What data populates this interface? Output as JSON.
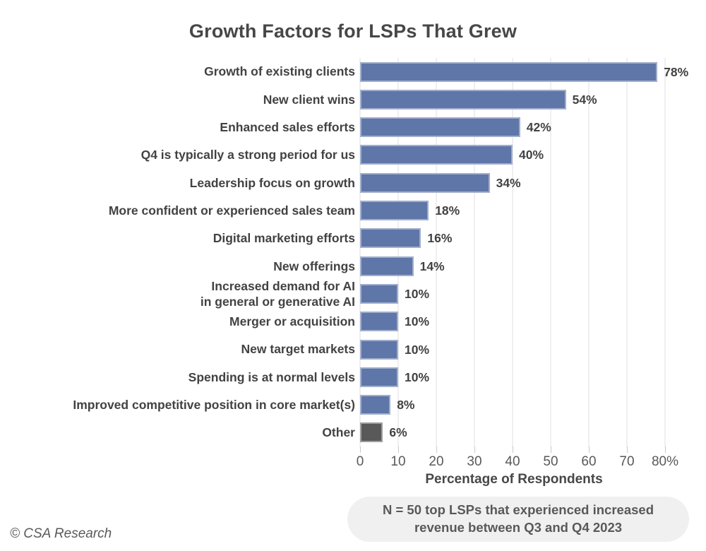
{
  "title": "Growth Factors for LSPs That Grew",
  "chart_data": {
    "type": "bar",
    "orientation": "horizontal",
    "title": "Growth Factors for LSPs That Grew",
    "categories": [
      "Growth of existing clients",
      "New client wins",
      "Enhanced sales efforts",
      "Q4 is typically a strong period for us",
      "Leadership focus on growth",
      "More confident or experienced sales team",
      "Digital marketing efforts",
      "New offerings",
      "Increased demand for AI\nin general or generative AI",
      "Merger or acquisition",
      "New target markets",
      "Spending is at normal levels",
      "Improved competitive position in core market(s)",
      "Other"
    ],
    "values": [
      78,
      54,
      42,
      40,
      34,
      18,
      16,
      14,
      10,
      10,
      10,
      10,
      8,
      6
    ],
    "value_labels": [
      "78%",
      "54%",
      "42%",
      "40%",
      "34%",
      "18%",
      "16%",
      "14%",
      "10%",
      "10%",
      "10%",
      "10%",
      "8%",
      "6%"
    ],
    "colors": [
      "#5e76a8",
      "#5e76a8",
      "#5e76a8",
      "#5e76a8",
      "#5e76a8",
      "#5e76a8",
      "#5e76a8",
      "#5e76a8",
      "#5e76a8",
      "#5e76a8",
      "#5e76a8",
      "#5e76a8",
      "#5e76a8",
      "#595959"
    ],
    "xlabel": "Percentage of Respondents",
    "x_ticks": [
      "0",
      "10",
      "20",
      "30",
      "40",
      "50",
      "60",
      "70",
      "80%"
    ],
    "xlim": [
      0,
      80
    ],
    "grid": true,
    "legend": false
  },
  "colors": {
    "bar": "#5e76a8",
    "other_bar": "#595959",
    "heading_text": "#474747",
    "label_text": "#424242",
    "tick_text": "#595959",
    "gridline": "#efefef",
    "note_background": "#f0f0f1",
    "note_text": "#595959"
  },
  "note": {
    "line1": "N = 50 top LSPs that experienced increased",
    "line2": "revenue between Q3 and Q4 2023"
  },
  "footer": {
    "copyright": "© CSA Research"
  }
}
